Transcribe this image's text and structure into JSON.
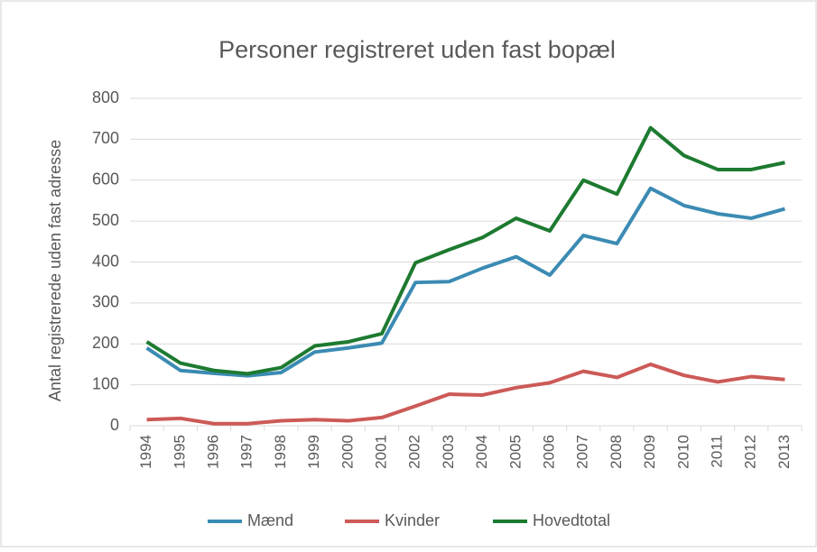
{
  "chart_data": {
    "type": "line",
    "title": "Personer registreret uden fast bopæl",
    "y_label": "Antal registrerede  uden fast adresse",
    "categories": [
      "1994",
      "1995",
      "1996",
      "1997",
      "1998",
      "1999",
      "2000",
      "2001",
      "2002",
      "2003",
      "2004",
      "2005",
      "2006",
      "2007",
      "2008",
      "2009",
      "2010",
      "2011",
      "2012",
      "2013"
    ],
    "series": [
      {
        "name": "Mænd",
        "color": "#3b8bb3",
        "values": [
          190,
          135,
          128,
          122,
          130,
          180,
          190,
          202,
          350,
          352,
          385,
          413,
          368,
          465,
          445,
          580,
          538,
          518,
          507,
          530
        ]
      },
      {
        "name": "Kvinder",
        "color": "#cc5a57",
        "values": [
          15,
          18,
          5,
          5,
          12,
          15,
          12,
          20,
          48,
          77,
          75,
          93,
          105,
          133,
          118,
          150,
          123,
          107,
          120,
          113
        ]
      },
      {
        "name": "Hovedtotal",
        "color": "#1d7a30",
        "values": [
          205,
          153,
          135,
          127,
          142,
          195,
          205,
          225,
          398,
          430,
          460,
          507,
          476,
          600,
          566,
          728,
          660,
          626,
          626,
          643
        ]
      }
    ],
    "ylim": [
      0,
      800
    ],
    "yticks": [
      0,
      100,
      200,
      300,
      400,
      500,
      600,
      700,
      800
    ],
    "grid": true,
    "legend": "bottom"
  }
}
